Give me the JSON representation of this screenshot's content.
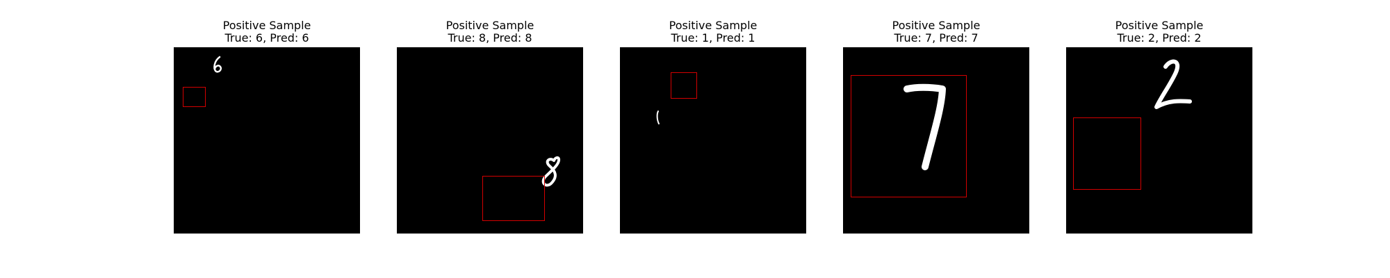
{
  "panels": [
    {
      "title": "Positive Sample",
      "label": "True: 6, Pred: 6",
      "true": 6,
      "pred": 6
    },
    {
      "title": "Positive Sample",
      "label": "True: 8, Pred: 8",
      "true": 8,
      "pred": 8
    },
    {
      "title": "Positive Sample",
      "label": "True: 1, Pred: 1",
      "true": 1,
      "pred": 1
    },
    {
      "title": "Positive Sample",
      "label": "True: 7, Pred: 7",
      "true": 7,
      "pred": 7
    },
    {
      "title": "Positive Sample",
      "label": "True: 2, Pred: 2",
      "true": 2,
      "pred": 2
    }
  ],
  "colors": {
    "background": "#ffffff",
    "image_background": "#000000",
    "digit": "#ffffff",
    "box": "#d40000"
  }
}
